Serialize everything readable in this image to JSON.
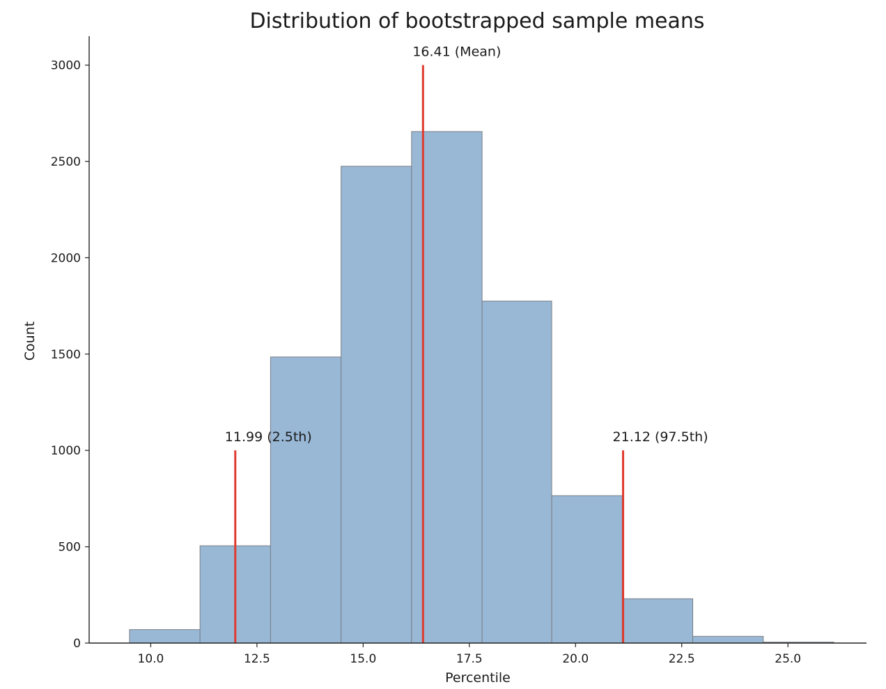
{
  "chart_data": {
    "type": "bar",
    "title": "Distribution of bootstrapped sample means",
    "xlabel": "Percentile",
    "ylabel": "Count",
    "xlim": [
      8.55,
      26.85
    ],
    "ylim": [
      0,
      3150
    ],
    "xticks": [
      10.0,
      12.5,
      15.0,
      17.5,
      20.0,
      22.5,
      25.0
    ],
    "xtick_labels": [
      "10.0",
      "12.5",
      "15.0",
      "17.5",
      "20.0",
      "22.5",
      "25.0"
    ],
    "yticks": [
      0,
      500,
      1000,
      1500,
      2000,
      2500,
      3000
    ],
    "ytick_labels": [
      "0",
      "500",
      "1000",
      "1500",
      "2000",
      "2500",
      "3000"
    ],
    "bins": [
      {
        "x0": 9.5,
        "x1": 11.16,
        "count": 70
      },
      {
        "x0": 11.16,
        "x1": 12.82,
        "count": 505
      },
      {
        "x0": 12.82,
        "x1": 14.48,
        "count": 1485
      },
      {
        "x0": 14.48,
        "x1": 16.14,
        "count": 2475
      },
      {
        "x0": 16.14,
        "x1": 17.8,
        "count": 2655
      },
      {
        "x0": 17.8,
        "x1": 19.44,
        "count": 1775
      },
      {
        "x0": 19.44,
        "x1": 21.1,
        "count": 765
      },
      {
        "x0": 21.1,
        "x1": 22.76,
        "count": 230
      },
      {
        "x0": 22.76,
        "x1": 24.42,
        "count": 35
      },
      {
        "x0": 24.42,
        "x1": 26.08,
        "count": 5
      }
    ],
    "vlines": [
      {
        "x": 11.99,
        "height": 1000,
        "label": "11.99 (2.5th)"
      },
      {
        "x": 16.41,
        "height": 3000,
        "label": "16.41 (Mean)"
      },
      {
        "x": 21.12,
        "height": 1000,
        "label": "21.12 (97.5th)"
      }
    ],
    "colors": {
      "bar_fill": "#98b8d6",
      "bar_edge": "#7a7f85",
      "vline": "#e03a2e",
      "axis": "#222222"
    },
    "grid": false
  }
}
